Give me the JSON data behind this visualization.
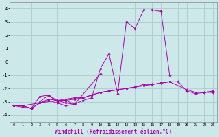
{
  "background_color": "#cce8e8",
  "grid_color": "#aacccc",
  "line_color": "#aa00aa",
  "marker": "D",
  "xlabel": "Windchill (Refroidissement éolien,°C)",
  "xlabel_fontsize": 5.5,
  "xlim": [
    -0.5,
    23.5
  ],
  "ylim": [
    -4.5,
    4.5
  ],
  "yticks": [
    -4,
    -3,
    -2,
    -1,
    0,
    1,
    2,
    3,
    4
  ],
  "xticks": [
    0,
    1,
    2,
    3,
    4,
    5,
    6,
    7,
    8,
    9,
    10,
    11,
    12,
    13,
    14,
    15,
    16,
    17,
    18,
    19,
    20,
    21,
    22,
    23
  ],
  "series": [
    {
      "x": [
        1,
        2,
        3,
        4,
        5,
        6,
        7,
        10
      ],
      "y": [
        -3.3,
        -3.5,
        -2.6,
        -2.5,
        -2.9,
        -3.1,
        -3.2,
        -0.9
      ]
    },
    {
      "x": [
        3,
        4,
        5,
        6,
        7
      ],
      "y": [
        -3.0,
        -2.5,
        -3.0,
        -2.9,
        -3.2
      ]
    },
    {
      "x": [
        0,
        1,
        2,
        3,
        4,
        5,
        6,
        7,
        8,
        9,
        10,
        11,
        12,
        13,
        14,
        15,
        16,
        17,
        18
      ],
      "y": [
        -3.3,
        -3.3,
        -3.5,
        -3.1,
        -2.9,
        -3.1,
        -3.3,
        -3.2,
        -2.9,
        -2.7,
        -0.5,
        0.6,
        -2.4,
        3.0,
        2.5,
        3.9,
        3.9,
        3.8,
        -1.0
      ]
    },
    {
      "x": [
        0,
        1,
        5,
        6,
        7,
        8,
        9,
        10,
        11,
        12,
        13,
        14,
        15,
        16,
        17,
        18,
        19,
        20,
        21,
        22,
        23
      ],
      "y": [
        -3.3,
        -3.3,
        -2.9,
        -2.9,
        -2.8,
        -2.7,
        -2.5,
        -2.3,
        -2.2,
        -2.1,
        -2.0,
        -1.9,
        -1.8,
        -1.7,
        -1.6,
        -1.5,
        -1.5,
        -2.2,
        -2.4,
        -2.3,
        -2.3
      ]
    },
    {
      "x": [
        0,
        1,
        2,
        3,
        4,
        5,
        6,
        7,
        8,
        9,
        10,
        11,
        12,
        13,
        14,
        15,
        16,
        17,
        18,
        20,
        21,
        22,
        23
      ],
      "y": [
        -3.3,
        -3.4,
        -3.5,
        -3.1,
        -2.8,
        -2.9,
        -2.8,
        -2.7,
        -2.7,
        -2.5,
        -2.3,
        -2.2,
        -2.1,
        -2.0,
        -1.9,
        -1.7,
        -1.7,
        -1.6,
        -1.5,
        -2.1,
        -2.3,
        -2.3,
        -2.2
      ]
    }
  ]
}
